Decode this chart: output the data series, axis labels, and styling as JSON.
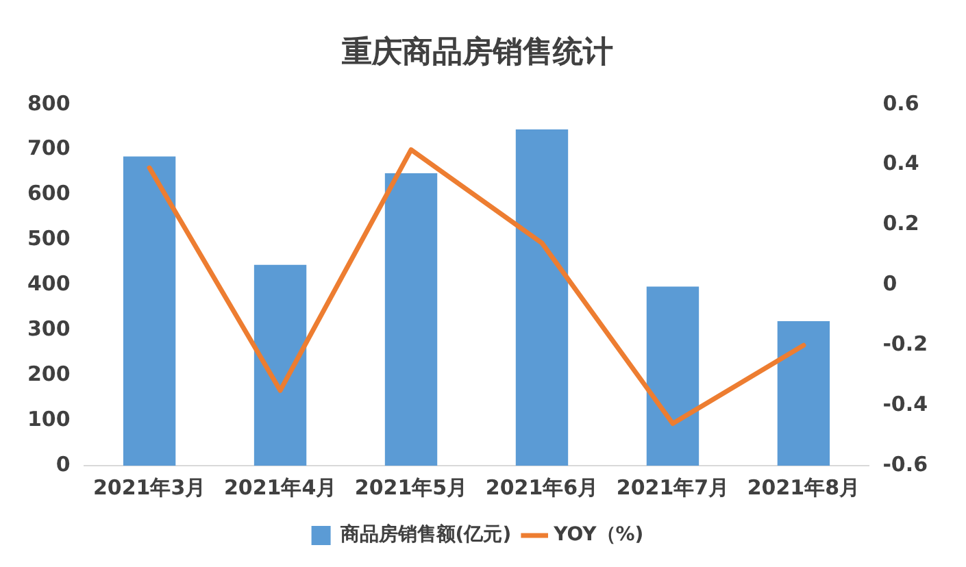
{
  "chart_data": {
    "type": "bar",
    "title": "重庆商品房销售统计",
    "categories": [
      "2021年3月",
      "2021年4月",
      "2021年5月",
      "2021年6月",
      "2021年7月",
      "2021年8月"
    ],
    "series": [
      {
        "name": "商品房销售额(亿元)",
        "color": "#5b9bd5",
        "values": [
          685,
          445,
          648,
          745,
          397,
          320
        ]
      },
      {
        "name": "YOY（%)",
        "type": "line",
        "axis": "y2",
        "color": "#ed7d31",
        "marker": "none",
        "values": [
          0.39,
          -0.35,
          0.45,
          0.14,
          -0.46,
          -0.2
        ]
      }
    ],
    "ylim": [
      0,
      800
    ],
    "yticks": [
      0,
      100,
      200,
      300,
      400,
      500,
      600,
      700,
      800
    ],
    "y2lim": [
      -0.6,
      0.6
    ],
    "y2ticks": [
      -0.6,
      -0.4,
      -0.2,
      0,
      0.2,
      0.4,
      0.6
    ],
    "grid": false,
    "legend": "bottom"
  }
}
